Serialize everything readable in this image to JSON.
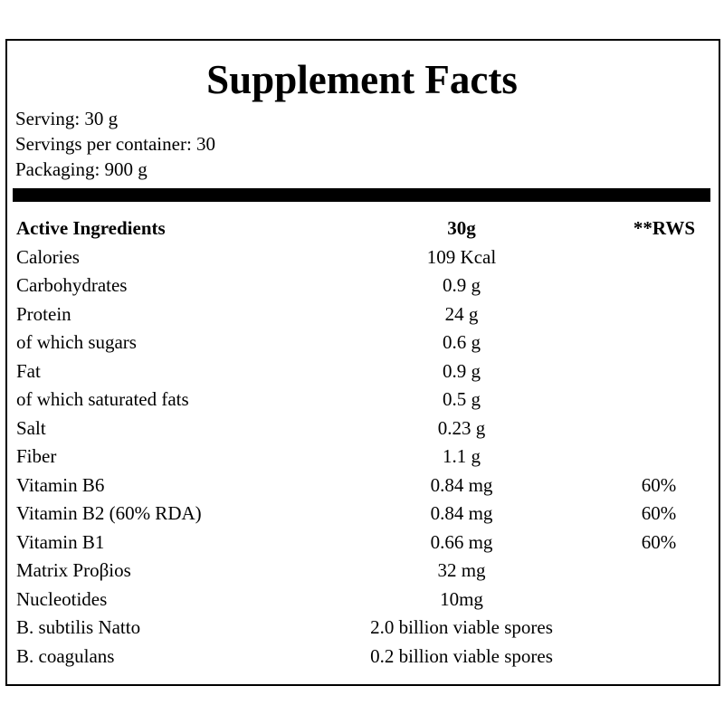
{
  "header": {
    "title": "Supplement Facts"
  },
  "info": [
    "Serving: 30 g",
    "Servings per container: 30",
    "Packaging: 900 g"
  ],
  "table": {
    "columns": [
      "Active Ingredients",
      "30g",
      "**RWS"
    ],
    "rows": [
      [
        "Calories",
        "109 Kcal"
      ],
      [
        "Carbohydrates",
        "0.9 g"
      ],
      [
        "Protein",
        "24 g"
      ],
      [
        "of which sugars",
        "0.6 g"
      ],
      [
        "Fat",
        "0.9 g"
      ],
      [
        "of which saturated fats",
        "0.5 g"
      ],
      [
        "Salt",
        "0.23 g"
      ],
      [
        "Fiber",
        "1.1 g"
      ],
      [
        "Vitamin B6",
        "0.84 mg",
        "60%"
      ],
      [
        "Vitamin B2 (60% RDA)",
        "0.84 mg",
        "60%"
      ],
      [
        "Vitamin B1",
        "0.66 mg",
        "60%"
      ],
      [
        "Matrix Proβios",
        "32 mg"
      ],
      [
        "Nucleotides",
        "10mg"
      ],
      [
        "B. subtilis Natto",
        "2.0 billion viable spores"
      ],
      [
        "B. coagulans",
        "0.2 billion viable spores"
      ]
    ]
  }
}
